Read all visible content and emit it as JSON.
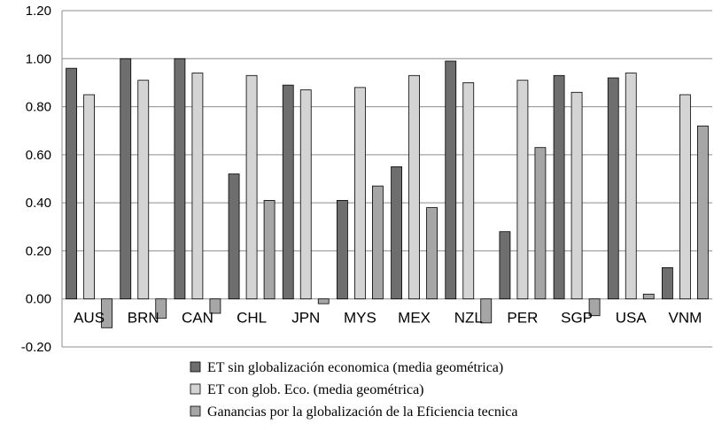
{
  "chart_data": {
    "type": "bar",
    "categories": [
      "AUS",
      "BRN",
      "CAN",
      "CHL",
      "JPN",
      "MYS",
      "MEX",
      "NZL",
      "PER",
      "SGP",
      "USA",
      "VNM"
    ],
    "series": [
      {
        "name": "ET sin globalización economica (media geométrica)",
        "color": "#6e6e6e",
        "values": [
          0.96,
          1.0,
          1.0,
          0.52,
          0.89,
          0.41,
          0.55,
          0.99,
          0.28,
          0.93,
          0.92,
          0.13
        ]
      },
      {
        "name": "ET con glob. Eco. (media geométrica)",
        "color": "#d4d4d4",
        "values": [
          0.85,
          0.91,
          0.94,
          0.93,
          0.87,
          0.88,
          0.93,
          0.9,
          0.91,
          0.86,
          0.94,
          0.85
        ]
      },
      {
        "name": "Ganancias por la globalización de la Eficiencia tecnica",
        "color": "#a6a6a6",
        "values": [
          -0.12,
          -0.08,
          -0.06,
          0.41,
          -0.02,
          0.47,
          0.38,
          -0.1,
          0.63,
          -0.07,
          0.02,
          0.72
        ]
      }
    ],
    "y_ticks": [
      "1.20",
      "1.00",
      "0.80",
      "0.60",
      "0.40",
      "0.20",
      "0.00",
      "-0.20"
    ],
    "ylim": [
      -0.2,
      1.2
    ],
    "grid": true,
    "legend_position": "bottom"
  }
}
